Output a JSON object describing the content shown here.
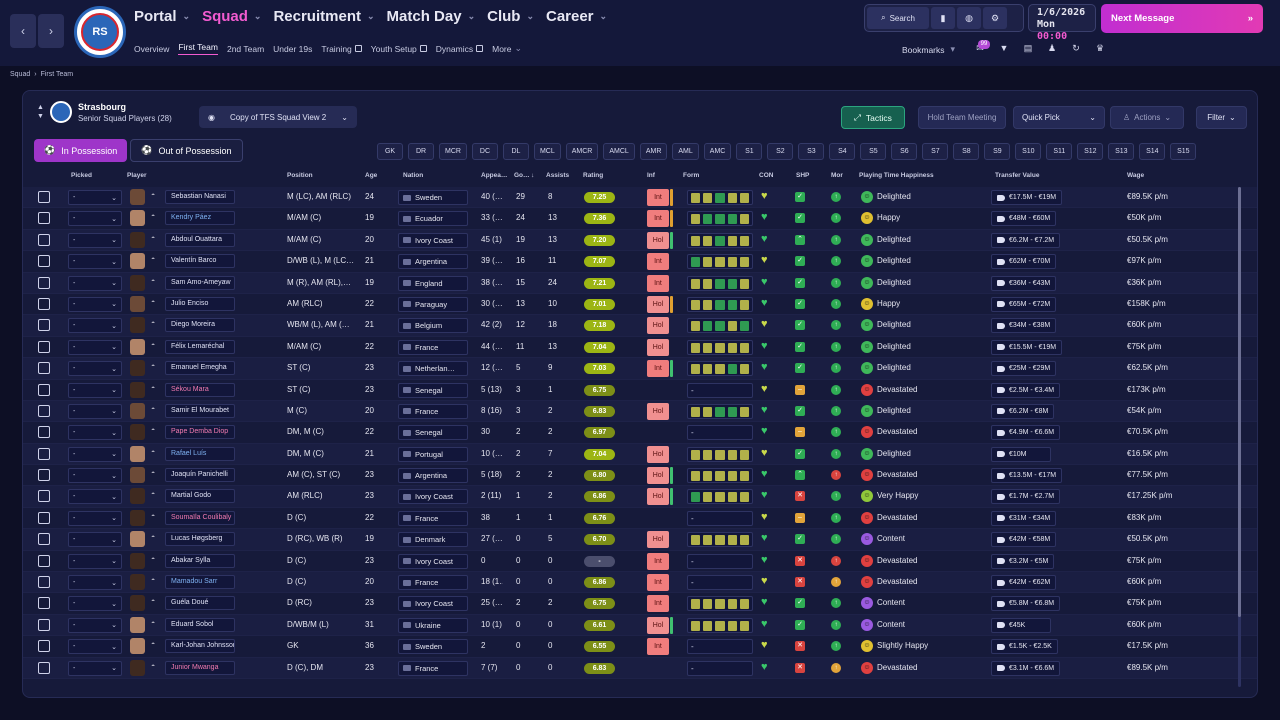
{
  "nav": {
    "back": "‹",
    "forward": "›",
    "logo_text": "RS",
    "menu": [
      {
        "label": "Portal",
        "active": false
      },
      {
        "label": "Squad",
        "active": true
      },
      {
        "label": "Recruitment",
        "active": false
      },
      {
        "label": "Match Day",
        "active": false
      },
      {
        "label": "Club",
        "active": false
      },
      {
        "label": "Career",
        "active": false
      }
    ],
    "submenu": [
      "Overview",
      "First Team",
      "2nd Team",
      "Under 19s",
      "Training",
      "Youth Setup",
      "Dynamics",
      "More"
    ],
    "search_label": "Search",
    "date": "1/6/2026",
    "day": "Mon",
    "time": "00:00",
    "next_message": "Next Message",
    "bookmarks": "Bookmarks",
    "badge": "99"
  },
  "breadcrumb": [
    "Squad",
    "First Team"
  ],
  "team": {
    "name": "Strasbourg",
    "subtitle": "Senior Squad Players (28)",
    "view": "Copy of TFS Squad View 2"
  },
  "buttons": {
    "tactics": "Tactics",
    "hold_meeting": "Hold Team Meeting",
    "quick_pick": "Quick Pick",
    "actions": "Actions",
    "filter": "Filter",
    "in_possession": "In Possession",
    "out_possession": "Out of Possession"
  },
  "positions": [
    "GK",
    "DR",
    "MCR",
    "DC",
    "DL",
    "MCL",
    "AMCR",
    "AMCL",
    "AMR",
    "AML",
    "AMC",
    "S1",
    "S2",
    "S3",
    "S4",
    "S5",
    "S6",
    "S7",
    "S8",
    "S9",
    "S10",
    "S11",
    "S12",
    "S13",
    "S14",
    "S15"
  ],
  "columns": {
    "picked": "Picked",
    "player": "Player",
    "position": "Position",
    "age": "Age",
    "nation": "Nation",
    "appearances": "Appea…",
    "goals": "Go…",
    "assists": "Assists",
    "rating": "Rating",
    "inf": "Inf",
    "form": "Form",
    "con": "CON",
    "shp": "SHP",
    "mor": "Mor",
    "happiness": "Playing Time Happiness",
    "transfer_value": "Transfer Value",
    "wage": "Wage"
  },
  "colors": {
    "accent": "#f25bd0",
    "tactics": "#16604f"
  },
  "players": [
    {
      "name": "Sebastian Nanasi",
      "pos": "M (LC), AM (RLC)",
      "age": "24",
      "nation": "Sweden",
      "apps": "40 (…",
      "gls": "29",
      "ast": "8",
      "rating": "7.25",
      "inf": "Int",
      "infbar": "#e0a030",
      "form": "yygyy",
      "shp": "ok",
      "mor": "g",
      "hap": "Delighted",
      "hapc": "#3fb85a",
      "tv": "€17.5M - €19M",
      "wage": "€89.5K p/m",
      "nc": "",
      "skin": ""
    },
    {
      "name": "Kendry Páez",
      "pos": "M/AM (C)",
      "age": "19",
      "nation": "Ecuador",
      "apps": "33 (…",
      "gls": "24",
      "ast": "13",
      "rating": "7.36",
      "inf": "Int",
      "infbar": "#e0a030",
      "form": "ygggy",
      "shp": "ok",
      "mor": "g",
      "hap": "Happy",
      "hapc": "#e0c030",
      "tv": "€48M - €60M",
      "wage": "€50K p/m",
      "nc": "blue",
      "skin": "l"
    },
    {
      "name": "Abdoul Ouattara",
      "pos": "M/AM (C)",
      "age": "20",
      "nation": "Ivory Coast",
      "apps": "45 (1)",
      "gls": "19",
      "ast": "13",
      "rating": "7.20",
      "inf": "Hol",
      "infbar": "#40c070",
      "form": "yygyy",
      "shp": "up",
      "mor": "g",
      "hap": "Delighted",
      "hapc": "#3fb85a",
      "tv": "€6.2M - €7.2M",
      "wage": "€50.5K p/m",
      "nc": "",
      "skin": "d"
    },
    {
      "name": "Valentín Barco",
      "pos": "D/WB (L), M (LC…",
      "age": "21",
      "nation": "Argentina",
      "apps": "39 (…",
      "gls": "16",
      "ast": "11",
      "rating": "7.07",
      "inf": "Int",
      "infbar": "",
      "form": "gyyyy",
      "shp": "ok",
      "mor": "g",
      "hap": "Delighted",
      "hapc": "#3fb85a",
      "tv": "€62M - €70M",
      "wage": "€97K p/m",
      "nc": "",
      "skin": "l"
    },
    {
      "name": "Sam Amo-Ameyaw",
      "pos": "M (R), AM (RL),…",
      "age": "19",
      "nation": "England",
      "apps": "38 (…",
      "gls": "15",
      "ast": "24",
      "rating": "7.21",
      "inf": "Int",
      "infbar": "",
      "form": "yyggy",
      "shp": "ok",
      "mor": "g",
      "hap": "Delighted",
      "hapc": "#3fb85a",
      "tv": "€36M - €43M",
      "wage": "€36K p/m",
      "nc": "",
      "skin": "d"
    },
    {
      "name": "Julio Enciso",
      "pos": "AM (RLC)",
      "age": "22",
      "nation": "Paraguay",
      "apps": "30 (…",
      "gls": "13",
      "ast": "10",
      "rating": "7.01",
      "inf": "Hol",
      "infbar": "#e0a030",
      "form": "yyggy",
      "shp": "ok",
      "mor": "g",
      "hap": "Happy",
      "hapc": "#e0c030",
      "tv": "€65M - €72M",
      "wage": "€158K p/m",
      "nc": "",
      "skin": ""
    },
    {
      "name": "Diego Moreira",
      "pos": "WB/M (L), AM (…",
      "age": "21",
      "nation": "Belgium",
      "apps": "42 (2)",
      "gls": "12",
      "ast": "18",
      "rating": "7.18",
      "inf": "Hol",
      "infbar": "",
      "form": "yggyg",
      "shp": "ok",
      "mor": "g",
      "hap": "Delighted",
      "hapc": "#3fb85a",
      "tv": "€34M - €38M",
      "wage": "€60K p/m",
      "nc": "",
      "skin": "d"
    },
    {
      "name": "Félix Lemaréchal",
      "pos": "M/AM (C)",
      "age": "22",
      "nation": "France",
      "apps": "44 (…",
      "gls": "11",
      "ast": "13",
      "rating": "7.04",
      "inf": "Hol",
      "infbar": "",
      "form": "yyyyy",
      "shp": "ok",
      "mor": "g",
      "hap": "Delighted",
      "hapc": "#3fb85a",
      "tv": "€15.5M - €19M",
      "wage": "€75K p/m",
      "nc": "",
      "skin": "l"
    },
    {
      "name": "Emanuel Emegha",
      "pos": "ST (C)",
      "age": "23",
      "nation": "Netherlan…",
      "apps": "12 (…",
      "gls": "5",
      "ast": "9",
      "rating": "7.03",
      "inf": "Int",
      "infbar": "#40c070",
      "form": "yyygy",
      "shp": "ok",
      "mor": "g",
      "hap": "Delighted",
      "hapc": "#3fb85a",
      "tv": "€25M - €29M",
      "wage": "€62.5K p/m",
      "nc": "",
      "skin": "d"
    },
    {
      "name": "Sékou Mara",
      "pos": "ST (C)",
      "age": "23",
      "nation": "Senegal",
      "apps": "5 (13)",
      "gls": "3",
      "ast": "1",
      "rating": "6.75",
      "inf": "",
      "infbar": "",
      "form": "-",
      "shp": "mid",
      "mor": "g",
      "hap": "Devastated",
      "hapc": "#e04040",
      "tv": "€2.5M - €3.4M",
      "wage": "€173K p/m",
      "nc": "pink",
      "skin": "d"
    },
    {
      "name": "Samir El Mourabet",
      "pos": "M (C)",
      "age": "20",
      "nation": "France",
      "apps": "8 (16)",
      "gls": "3",
      "ast": "2",
      "rating": "6.83",
      "inf": "Hol",
      "infbar": "",
      "form": "yyggy",
      "shp": "ok",
      "mor": "g",
      "hap": "Delighted",
      "hapc": "#3fb85a",
      "tv": "€6.2M - €8M",
      "wage": "€54K p/m",
      "nc": "",
      "skin": ""
    },
    {
      "name": "Pape Demba Diop",
      "pos": "DM, M (C)",
      "age": "22",
      "nation": "Senegal",
      "apps": "30",
      "gls": "2",
      "ast": "2",
      "rating": "6.97",
      "inf": "",
      "infbar": "",
      "form": "-",
      "shp": "mid",
      "mor": "g",
      "hap": "Devastated",
      "hapc": "#e04040",
      "tv": "€4.9M - €6.6M",
      "wage": "€70.5K p/m",
      "nc": "pink",
      "skin": "d"
    },
    {
      "name": "Rafael Luís",
      "pos": "DM, M (C)",
      "age": "21",
      "nation": "Portugal",
      "apps": "10 (…",
      "gls": "2",
      "ast": "7",
      "rating": "7.04",
      "inf": "Hol",
      "infbar": "",
      "form": "yyyyy",
      "shp": "ok",
      "mor": "g",
      "hap": "Delighted",
      "hapc": "#3fb85a",
      "tv": "€10M",
      "wage": "€16.5K p/m",
      "nc": "blue",
      "skin": "l"
    },
    {
      "name": "Joaquín Panichelli",
      "pos": "AM (C), ST (C)",
      "age": "23",
      "nation": "Argentina",
      "apps": "5 (18)",
      "gls": "2",
      "ast": "2",
      "rating": "6.80",
      "inf": "Hol",
      "infbar": "#40c070",
      "form": "yyyyy",
      "shp": "up",
      "mor": "r",
      "hap": "Devastated",
      "hapc": "#e04040",
      "tv": "€13.5M - €17M",
      "wage": "€77.5K p/m",
      "nc": "",
      "skin": ""
    },
    {
      "name": "Martial Godo",
      "pos": "AM (RLC)",
      "age": "23",
      "nation": "Ivory Coast",
      "apps": "2 (11)",
      "gls": "1",
      "ast": "2",
      "rating": "6.86",
      "inf": "Hol",
      "infbar": "#40c070",
      "form": "gyyyy",
      "shp": "x",
      "mor": "g",
      "hap": "Very Happy",
      "hapc": "#8fc83a",
      "tv": "€1.7M - €2.7M",
      "wage": "€17.25K p/m",
      "nc": "",
      "skin": "d"
    },
    {
      "name": "Soumaïla Coulibaly",
      "pos": "D (C)",
      "age": "22",
      "nation": "France",
      "apps": "38",
      "gls": "1",
      "ast": "1",
      "rating": "6.76",
      "inf": "",
      "infbar": "",
      "form": "-",
      "shp": "mid",
      "mor": "g",
      "hap": "Devastated",
      "hapc": "#e04040",
      "tv": "€31M - €34M",
      "wage": "€83K p/m",
      "nc": "pink",
      "skin": "d"
    },
    {
      "name": "Lucas Høgsberg",
      "pos": "D (RC), WB (R)",
      "age": "19",
      "nation": "Denmark",
      "apps": "27 (…",
      "gls": "0",
      "ast": "5",
      "rating": "6.70",
      "inf": "Hol",
      "infbar": "",
      "form": "yyyyy",
      "shp": "ok",
      "mor": "g",
      "hap": "Content",
      "hapc": "#9a5ae0",
      "tv": "€42M - €58M",
      "wage": "€50.5K p/m",
      "nc": "",
      "skin": "l"
    },
    {
      "name": "Abakar Sylla",
      "pos": "D (C)",
      "age": "23",
      "nation": "Ivory Coast",
      "apps": "0",
      "gls": "0",
      "ast": "0",
      "rating": "-",
      "inf": "Int",
      "infbar": "",
      "form": "-",
      "shp": "x",
      "mor": "r",
      "hap": "Devastated",
      "hapc": "#e04040",
      "tv": "€3.2M - €5M",
      "wage": "€75K p/m",
      "nc": "",
      "skin": "d"
    },
    {
      "name": "Mamadou Sarr",
      "pos": "D (C)",
      "age": "20",
      "nation": "France",
      "apps": "18 (1…",
      "gls": "0",
      "ast": "0",
      "rating": "6.86",
      "inf": "Int",
      "infbar": "",
      "form": "-",
      "shp": "x",
      "mor": "y",
      "hap": "Devastated",
      "hapc": "#e04040",
      "tv": "€42M - €62M",
      "wage": "€60K p/m",
      "nc": "blue",
      "skin": "d"
    },
    {
      "name": "Guéla Doué",
      "pos": "D (RC)",
      "age": "23",
      "nation": "Ivory Coast",
      "apps": "25 (…",
      "gls": "2",
      "ast": "2",
      "rating": "6.75",
      "inf": "Int",
      "infbar": "",
      "form": "yyyyy",
      "shp": "ok",
      "mor": "g",
      "hap": "Content",
      "hapc": "#9a5ae0",
      "tv": "€5.8M - €6.8M",
      "wage": "€75K p/m",
      "nc": "",
      "skin": "d"
    },
    {
      "name": "Eduard Sobol",
      "pos": "D/WB/M (L)",
      "age": "31",
      "nation": "Ukraine",
      "apps": "10 (1)",
      "gls": "0",
      "ast": "0",
      "rating": "6.61",
      "inf": "Hol",
      "infbar": "#40c070",
      "form": "yyyyy",
      "shp": "ok",
      "mor": "g",
      "hap": "Content",
      "hapc": "#9a5ae0",
      "tv": "€45K",
      "wage": "€60K p/m",
      "nc": "",
      "skin": "l"
    },
    {
      "name": "Karl-Johan Johnsson",
      "pos": "GK",
      "age": "36",
      "nation": "Sweden",
      "apps": "2",
      "gls": "0",
      "ast": "0",
      "rating": "6.55",
      "inf": "Int",
      "infbar": "",
      "form": "-",
      "shp": "x",
      "mor": "g",
      "hap": "Slightly Happy",
      "hapc": "#e0c030",
      "tv": "€1.5K - €2.5K",
      "wage": "€17.5K p/m",
      "nc": "",
      "skin": "l"
    },
    {
      "name": "Junior Mwanga",
      "pos": "D (C), DM",
      "age": "23",
      "nation": "France",
      "apps": "7 (7)",
      "gls": "0",
      "ast": "0",
      "rating": "6.83",
      "inf": "",
      "infbar": "",
      "form": "-",
      "shp": "x",
      "mor": "y",
      "hap": "Devastated",
      "hapc": "#e04040",
      "tv": "€3.1M - €6.6M",
      "wage": "€89.5K p/m",
      "nc": "pink",
      "skin": "d"
    }
  ]
}
